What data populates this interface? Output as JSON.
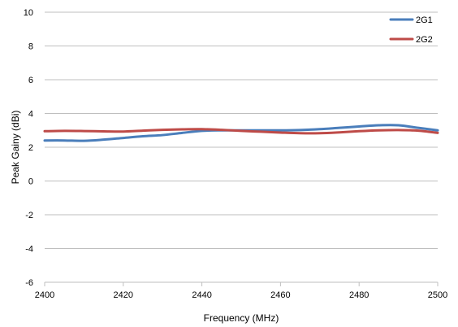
{
  "chart_data": {
    "type": "line",
    "title": "",
    "xlabel": "Frequency (MHz)",
    "ylabel": "Peak Gainy (dBi)",
    "xlim": [
      2400,
      2500
    ],
    "ylim": [
      -6,
      10
    ],
    "x_ticks": [
      2400,
      2420,
      2440,
      2460,
      2480,
      2500
    ],
    "y_ticks": [
      -6,
      -4,
      -2,
      0,
      2,
      4,
      6,
      8,
      10
    ],
    "x_tick_labels": [
      "2400",
      "2420",
      "2440",
      "2460",
      "2480",
      "2500"
    ],
    "y_tick_labels": [
      "-6",
      "-4",
      "-2",
      "0",
      "2",
      "4",
      "6",
      "8",
      "10"
    ],
    "grid": "horizontal",
    "legend_position": "top-right",
    "series": [
      {
        "name": "2G1",
        "color": "#4a7ebb",
        "x": [
          2400,
          2405,
          2410,
          2415,
          2420,
          2425,
          2430,
          2435,
          2440,
          2445,
          2450,
          2455,
          2460,
          2465,
          2470,
          2475,
          2480,
          2485,
          2490,
          2495,
          2500
        ],
        "y": [
          2.4,
          2.4,
          2.38,
          2.45,
          2.55,
          2.65,
          2.72,
          2.85,
          2.97,
          3.0,
          3.0,
          3.0,
          3.0,
          3.02,
          3.07,
          3.15,
          3.23,
          3.3,
          3.3,
          3.15,
          3.0
        ]
      },
      {
        "name": "2G2",
        "color": "#be4b48",
        "x": [
          2400,
          2405,
          2410,
          2415,
          2420,
          2425,
          2430,
          2435,
          2440,
          2445,
          2450,
          2455,
          2460,
          2465,
          2470,
          2475,
          2480,
          2485,
          2490,
          2495,
          2500
        ],
        "y": [
          2.95,
          2.97,
          2.96,
          2.94,
          2.93,
          2.98,
          3.03,
          3.06,
          3.07,
          3.03,
          2.97,
          2.92,
          2.87,
          2.83,
          2.83,
          2.88,
          2.95,
          3.0,
          3.02,
          2.98,
          2.85
        ]
      }
    ]
  }
}
